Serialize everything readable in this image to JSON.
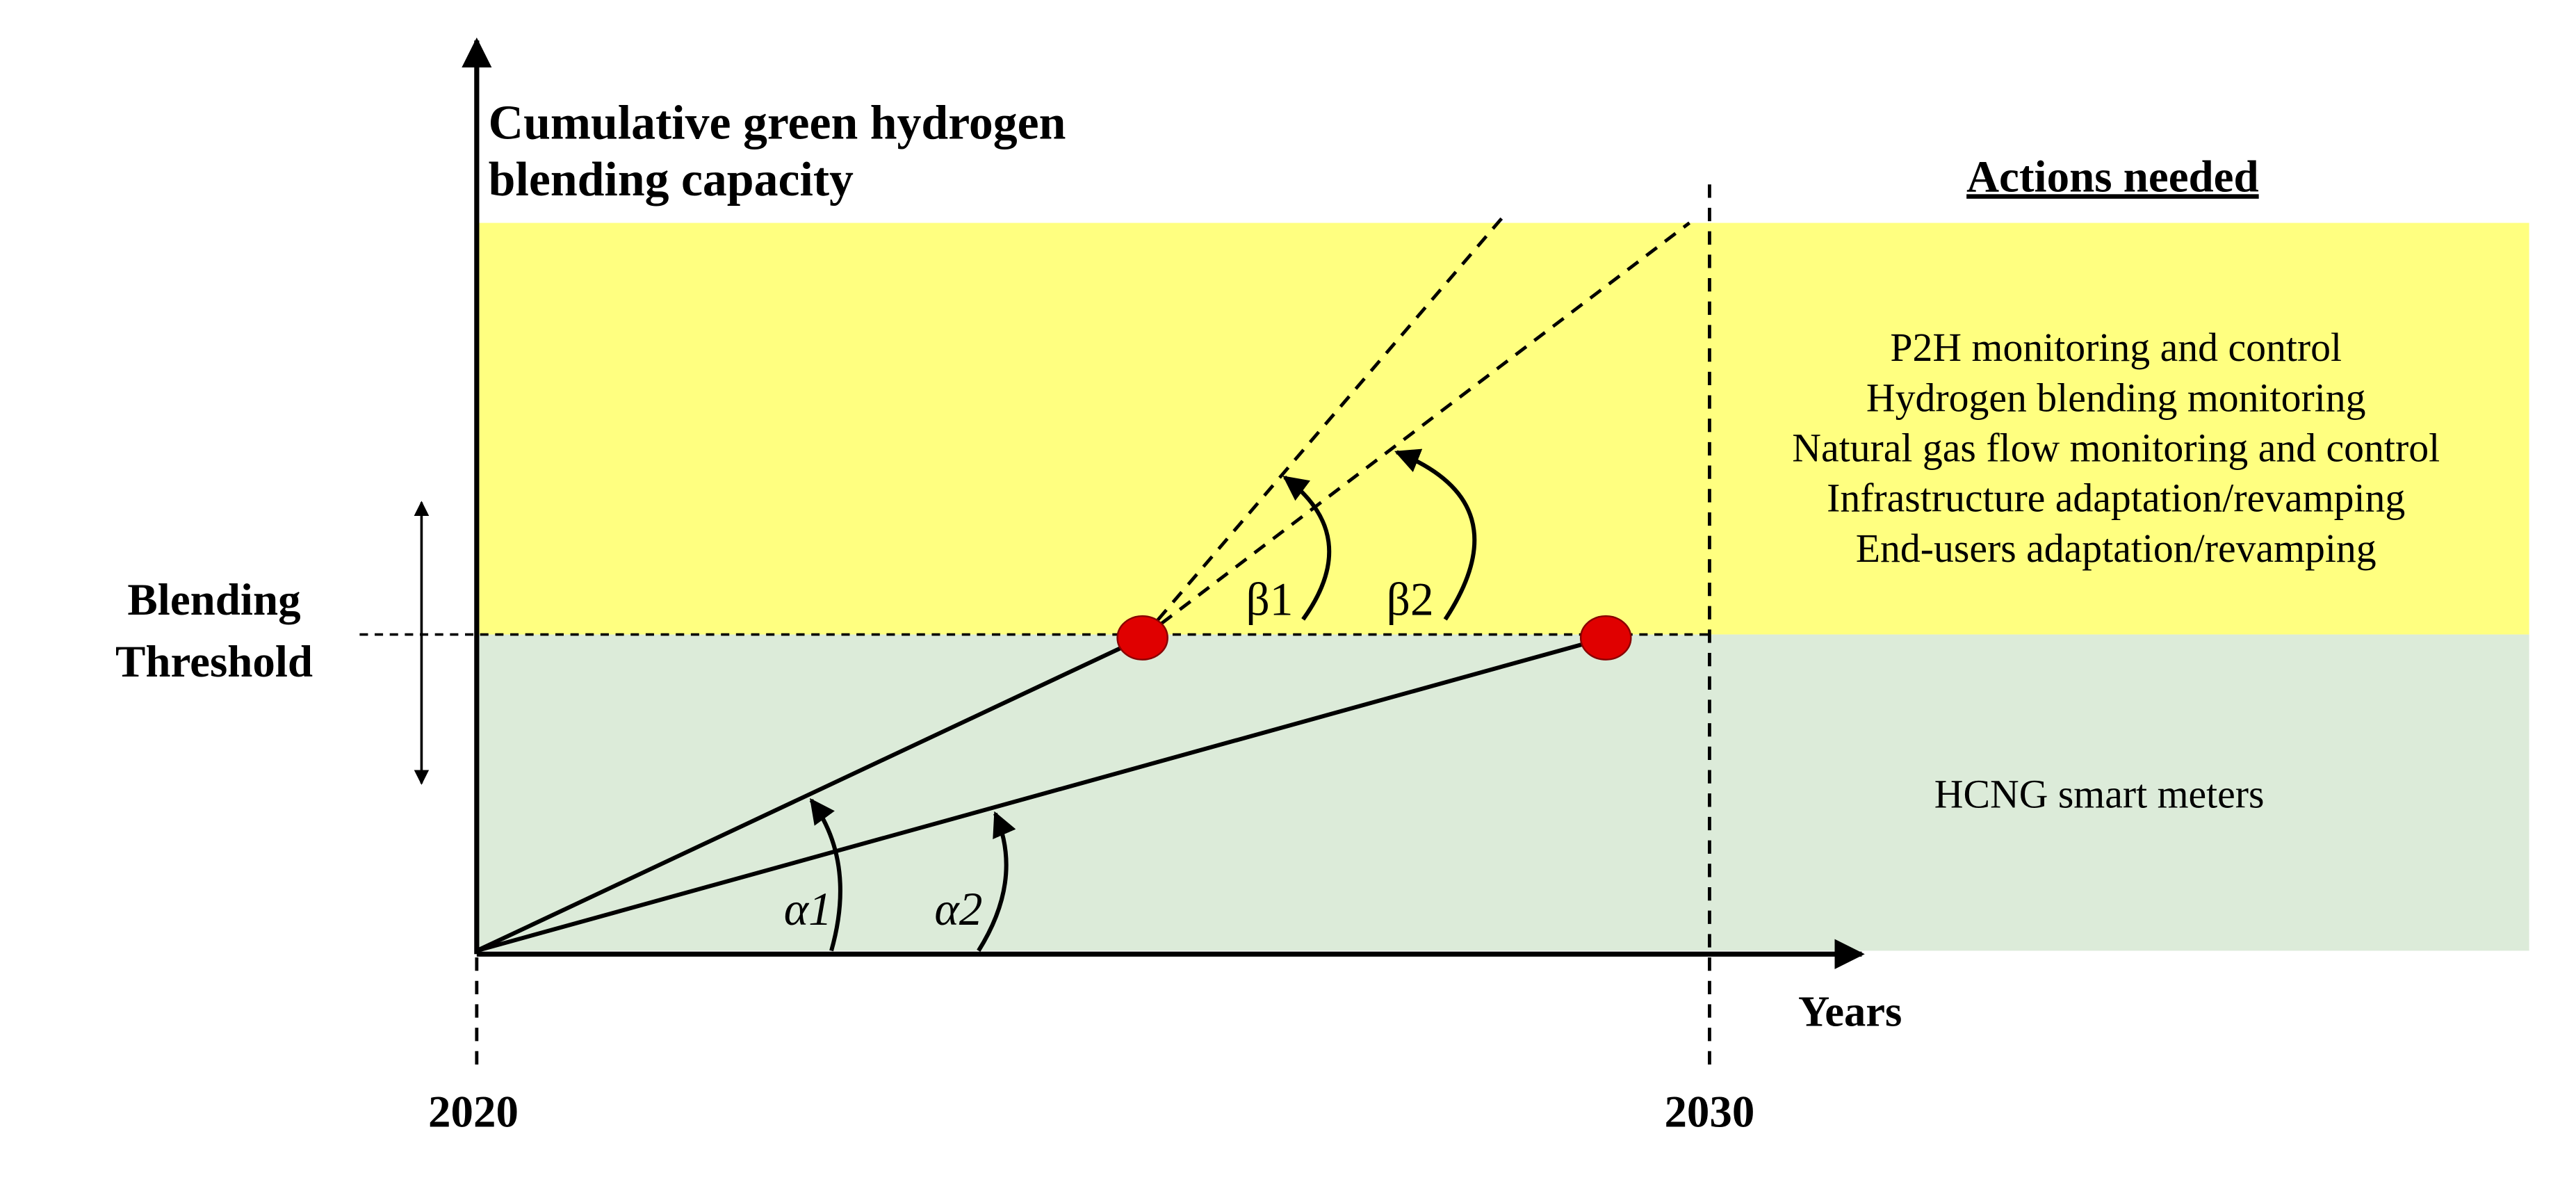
{
  "y_axis_label": [
    "Cumulative green hydrogen",
    "blending capacity"
  ],
  "x_axis_label": "Years",
  "ticks": [
    "2020",
    "2030"
  ],
  "threshold_label": [
    "Blending",
    "Threshold"
  ],
  "actions_title": "Actions needed",
  "actions_above": [
    "P2H monitoring and control",
    "Hydrogen blending monitoring",
    "Natural gas flow monitoring and control",
    "Infrastructure adaptation/revamping",
    "End-users adaptation/revamping"
  ],
  "actions_below": "HCNG smart meters",
  "angles": [
    "α1",
    "α2",
    "β1",
    "β2"
  ]
}
